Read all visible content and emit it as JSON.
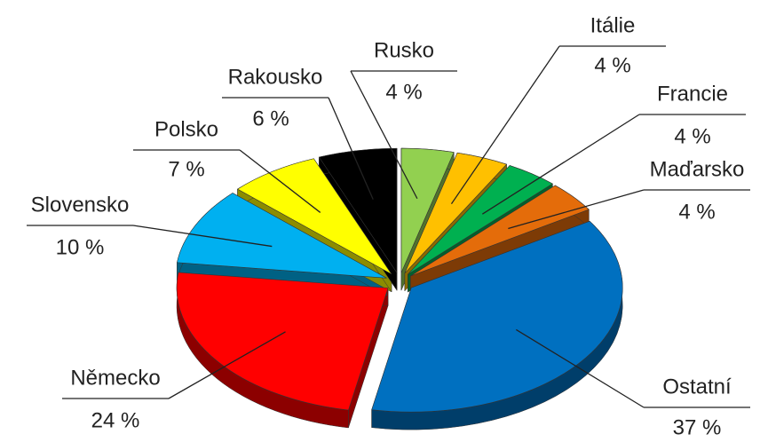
{
  "chart_data": {
    "type": "pie",
    "categories": [
      "Rusko",
      "Itálie",
      "Francie",
      "Maďarsko",
      "Ostatní",
      "Německo",
      "Slovensko",
      "Polsko",
      "Rakousko"
    ],
    "values": [
      4,
      4,
      4,
      4,
      37,
      24,
      10,
      7,
      6
    ],
    "value_labels": [
      "4 %",
      "4 %",
      "4 %",
      "4 %",
      "37 %",
      "24 %",
      "10 %",
      "7 %",
      "6 %"
    ],
    "colors": [
      "#92d050",
      "#ffc000",
      "#00b050",
      "#e46c0a",
      "#0070c0",
      "#ff0000",
      "#00b0f0",
      "#ffff00",
      "#000000"
    ]
  }
}
